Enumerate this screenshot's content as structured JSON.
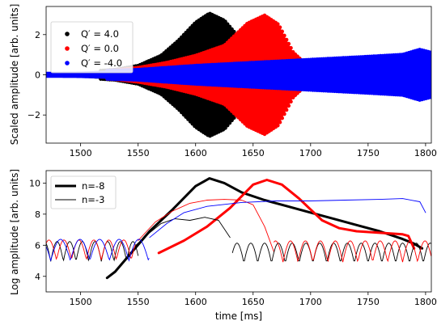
{
  "chart_data": [
    {
      "type": "line",
      "ylabel": "Scaled amplitude [arb. units]",
      "xlim": [
        1470,
        1805
      ],
      "ylim": [
        -3.4,
        3.4
      ],
      "xticks": [
        1500,
        1550,
        1600,
        1650,
        1700,
        1750,
        1800
      ],
      "yticks": [
        -2,
        0,
        2
      ],
      "legend": {
        "placement": "top-left",
        "entries": [
          {
            "label": "Q′ = 4.0",
            "color": "#000000"
          },
          {
            "label": "Q′ = 0.0",
            "color": "#ff0000"
          },
          {
            "label": "Q′ = -4.0",
            "color": "#0000ff"
          }
        ]
      },
      "series": [
        {
          "name": "Q′ = 4.0",
          "color": "#000000",
          "envelope": {
            "x": [
              1470,
              1500,
              1530,
              1550,
              1570,
              1585,
              1600,
              1612,
              1625,
              1640,
              1652,
              1660,
              1670
            ],
            "y": [
              0.12,
              0.14,
              0.25,
              0.45,
              0.95,
              1.7,
              2.6,
              3.05,
              2.7,
              1.7,
              0.5,
              0.18,
              0.1
            ]
          }
        },
        {
          "name": "Q′ = 0.0",
          "color": "#ff0000",
          "envelope": {
            "x": [
              1470,
              1500,
              1530,
              1550,
              1575,
              1600,
              1625,
              1645,
              1660,
              1672,
              1685,
              1700,
              1710
            ],
            "y": [
              0.12,
              0.14,
              0.22,
              0.35,
              0.6,
              0.95,
              1.45,
              2.55,
              2.95,
              2.5,
              1.1,
              0.3,
              0.12
            ]
          }
        },
        {
          "name": "Q′ = -4.0",
          "color": "#0000ff",
          "envelope": {
            "x": [
              1470,
              1500,
              1550,
              1600,
              1650,
              1700,
              1750,
              1780,
              1795,
              1805
            ],
            "y": [
              0.15,
              0.16,
              0.25,
              0.45,
              0.6,
              0.75,
              0.9,
              1.0,
              1.25,
              1.1
            ]
          }
        }
      ]
    },
    {
      "type": "line",
      "xlabel": "time [ms]",
      "ylabel": "Log amplitude [arb. units]",
      "xlim": [
        1470,
        1805
      ],
      "ylim": [
        3.0,
        10.8
      ],
      "xticks": [
        1500,
        1550,
        1600,
        1650,
        1700,
        1750,
        1800
      ],
      "yticks": [
        4,
        6,
        8,
        10
      ],
      "legend": {
        "placement": "top-left",
        "entries": [
          {
            "label": "n=-8",
            "style": "thick"
          },
          {
            "label": "n=-3",
            "style": "thin"
          }
        ]
      },
      "series": [
        {
          "name": "n=-8",
          "color": "#000000",
          "style": "thick",
          "x": [
            1523,
            1530,
            1545,
            1560,
            1580,
            1600,
            1612,
            1625,
            1640,
            1660,
            1680,
            1700,
            1720,
            1740,
            1760,
            1780,
            1790,
            1797
          ],
          "y": [
            3.9,
            4.3,
            5.6,
            6.9,
            8.3,
            9.8,
            10.3,
            10.0,
            9.4,
            8.9,
            8.5,
            8.1,
            7.7,
            7.3,
            6.9,
            6.4,
            6.1,
            5.8
          ]
        },
        {
          "name": "n=-8",
          "color": "#ff0000",
          "style": "thick",
          "x": [
            1568,
            1590,
            1610,
            1630,
            1650,
            1662,
            1675,
            1690,
            1700,
            1710,
            1725,
            1740,
            1760,
            1780,
            1785,
            1790
          ],
          "y": [
            5.5,
            6.3,
            7.2,
            8.4,
            9.9,
            10.2,
            9.9,
            9.0,
            8.3,
            7.6,
            7.1,
            6.9,
            6.8,
            6.7,
            6.6,
            5.8
          ]
        },
        {
          "name": "n=-3",
          "color": "#000000",
          "style": "thin",
          "x": [
            1548,
            1560,
            1570,
            1582,
            1595,
            1608,
            1620,
            1630
          ],
          "y": [
            6.0,
            6.8,
            7.4,
            7.7,
            7.6,
            7.8,
            7.6,
            6.5
          ]
        },
        {
          "name": "n=-3",
          "color": "#ff0000",
          "style": "thin",
          "x": [
            1550,
            1565,
            1580,
            1595,
            1610,
            1625,
            1640,
            1650,
            1660,
            1668
          ],
          "y": [
            6.3,
            7.5,
            8.2,
            8.7,
            8.9,
            8.95,
            8.9,
            8.6,
            7.2,
            5.6
          ]
        },
        {
          "name": "n=-3",
          "color": "#0000ff",
          "style": "thin",
          "x": [
            1560,
            1575,
            1590,
            1610,
            1640,
            1670,
            1700,
            1730,
            1760,
            1780,
            1795,
            1800
          ],
          "y": [
            6.5,
            7.4,
            8.1,
            8.5,
            8.75,
            8.85,
            8.85,
            8.9,
            8.95,
            9.0,
            8.8,
            8.1
          ]
        },
        {
          "name": "n=-3",
          "color": "#000000",
          "style": "thin",
          "noise": {
            "x0": 1470,
            "x1": 1550,
            "center": 5.6,
            "amp": 0.8,
            "period": 11,
            "phase": 0
          },
          "noise2": {
            "x0": 1632,
            "x1": 1805,
            "center": 5.5,
            "amp": 0.8,
            "period": 12,
            "phase": 2
          }
        },
        {
          "name": "n=-3",
          "color": "#ff0000",
          "style": "thin",
          "noise": {
            "x0": 1470,
            "x1": 1548,
            "center": 5.7,
            "amp": 0.8,
            "period": 13,
            "phase": 3
          },
          "noise2": {
            "x0": 1668,
            "x1": 1805,
            "center": 5.6,
            "amp": 0.85,
            "period": 13,
            "phase": 1
          }
        },
        {
          "name": "n=-3",
          "color": "#0000ff",
          "style": "thin",
          "noise": {
            "x0": 1470,
            "x1": 1560,
            "center": 5.7,
            "amp": 0.85,
            "period": 17,
            "phase": 5
          }
        }
      ]
    }
  ]
}
